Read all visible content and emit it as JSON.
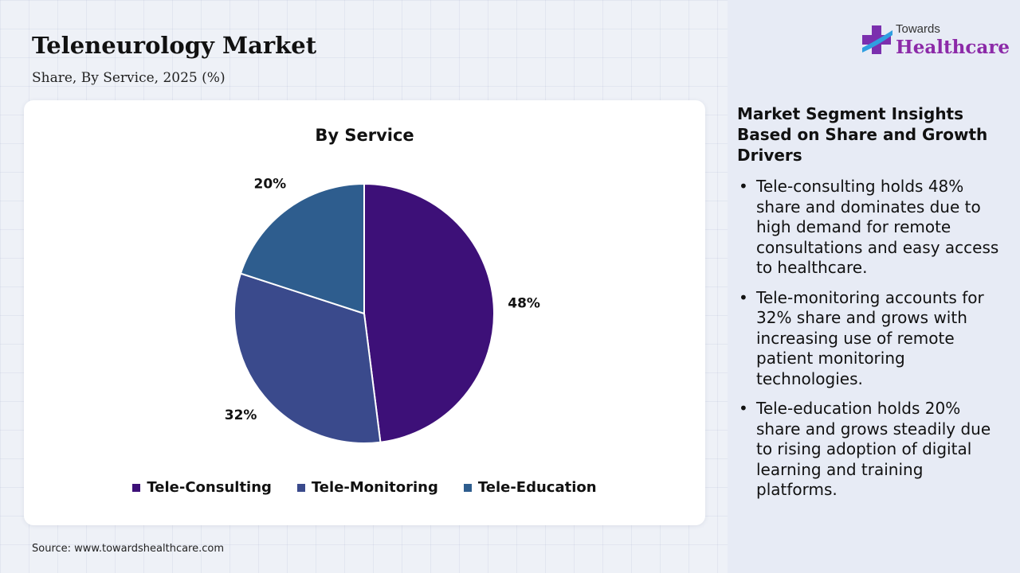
{
  "header": {
    "title": "Teleneurology Market",
    "subtitle": "Share, By Service, 2025 (%)"
  },
  "chart_data": {
    "type": "pie",
    "title": "By Service",
    "categories": [
      "Tele-Consulting",
      "Tele-Monitoring",
      "Tele-Education"
    ],
    "values": [
      48,
      32,
      20
    ],
    "labels": [
      "48%",
      "32%",
      "20%"
    ],
    "colors": [
      "#3d1078",
      "#3a4a8c",
      "#2e5d8e"
    ],
    "legend_position": "bottom"
  },
  "source": "Source: www.towardshealthcare.com",
  "logo": {
    "small": "Towards",
    "big": "Healthcare",
    "icon": "medical-cross-icon"
  },
  "insights": {
    "title": "Market Segment Insights Based on Share and Growth Drivers",
    "items": [
      "Tele-consulting holds 48% share and dominates due to high demand for remote consultations and easy access to healthcare.",
      "Tele-monitoring accounts for 32% share and grows with increasing use of remote patient monitoring technologies.",
      "Tele-education holds 20% share and grows steadily due to rising adoption of digital learning and training platforms."
    ]
  }
}
